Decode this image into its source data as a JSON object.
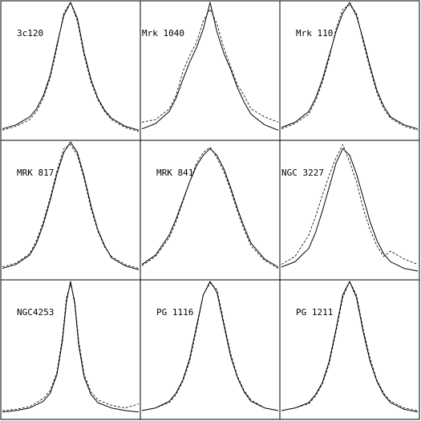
{
  "chart_data": [
    {
      "type": "line",
      "title": "3c120",
      "series": [
        {
          "style": "solid",
          "x": [
            -1,
            -0.8,
            -0.6,
            -0.5,
            -0.4,
            -0.3,
            -0.2,
            -0.1,
            0,
            0.1,
            0.2,
            0.3,
            0.4,
            0.5,
            0.6,
            0.8,
            1
          ],
          "y": [
            0.05,
            0.08,
            0.14,
            0.2,
            0.3,
            0.45,
            0.68,
            0.9,
            1.0,
            0.88,
            0.62,
            0.42,
            0.28,
            0.19,
            0.13,
            0.07,
            0.04
          ]
        },
        {
          "style": "dashed",
          "x": [
            -1,
            -0.8,
            -0.6,
            -0.5,
            -0.4,
            -0.3,
            -0.2,
            -0.1,
            0,
            0.1,
            0.2,
            0.3,
            0.4,
            0.5,
            0.6,
            0.8,
            1
          ],
          "y": [
            0.04,
            0.07,
            0.12,
            0.18,
            0.28,
            0.43,
            0.66,
            0.92,
            1.0,
            0.86,
            0.6,
            0.4,
            0.27,
            0.18,
            0.12,
            0.06,
            0.03
          ]
        }
      ]
    },
    {
      "type": "line",
      "title": "Mrk 1040",
      "series": [
        {
          "style": "solid",
          "x": [
            -1,
            -0.8,
            -0.6,
            -0.5,
            -0.4,
            -0.3,
            -0.2,
            -0.1,
            0,
            0.1,
            0.2,
            0.3,
            0.4,
            0.5,
            0.6,
            0.8,
            1
          ],
          "y": [
            0.05,
            0.09,
            0.18,
            0.28,
            0.42,
            0.55,
            0.66,
            0.8,
            1.0,
            0.78,
            0.62,
            0.5,
            0.36,
            0.25,
            0.16,
            0.08,
            0.04
          ]
        },
        {
          "style": "dashed",
          "x": [
            -1,
            -0.8,
            -0.6,
            -0.5,
            -0.4,
            -0.3,
            -0.2,
            -0.1,
            0,
            0.1,
            0.2,
            0.3,
            0.4,
            0.5,
            0.6,
            0.8,
            1
          ],
          "y": [
            0.1,
            0.12,
            0.2,
            0.3,
            0.48,
            0.6,
            0.7,
            0.86,
            0.95,
            0.84,
            0.66,
            0.52,
            0.38,
            0.3,
            0.2,
            0.14,
            0.1
          ]
        }
      ]
    },
    {
      "type": "line",
      "title": "Mrk 110",
      "series": [
        {
          "style": "solid",
          "x": [
            -1,
            -0.8,
            -0.6,
            -0.5,
            -0.4,
            -0.3,
            -0.2,
            -0.1,
            0,
            0.1,
            0.2,
            0.3,
            0.4,
            0.5,
            0.6,
            0.8,
            1
          ],
          "y": [
            0.06,
            0.1,
            0.18,
            0.28,
            0.42,
            0.6,
            0.78,
            0.92,
            1.0,
            0.9,
            0.72,
            0.52,
            0.34,
            0.22,
            0.14,
            0.08,
            0.05
          ]
        },
        {
          "style": "dashed",
          "x": [
            -1,
            -0.8,
            -0.6,
            -0.5,
            -0.4,
            -0.3,
            -0.2,
            -0.1,
            0,
            0.1,
            0.2,
            0.3,
            0.4,
            0.5,
            0.6,
            0.8,
            1
          ],
          "y": [
            0.05,
            0.09,
            0.16,
            0.26,
            0.4,
            0.58,
            0.8,
            0.95,
            0.98,
            0.92,
            0.7,
            0.5,
            0.32,
            0.2,
            0.13,
            0.07,
            0.04
          ]
        }
      ]
    },
    {
      "type": "line",
      "title": "MRK 817",
      "series": [
        {
          "style": "solid",
          "x": [
            -1,
            -0.8,
            -0.6,
            -0.5,
            -0.4,
            -0.3,
            -0.2,
            -0.1,
            0,
            0.1,
            0.2,
            0.3,
            0.4,
            0.5,
            0.6,
            0.8,
            1
          ],
          "y": [
            0.05,
            0.08,
            0.15,
            0.24,
            0.38,
            0.56,
            0.76,
            0.92,
            1.0,
            0.92,
            0.74,
            0.52,
            0.34,
            0.22,
            0.13,
            0.07,
            0.04
          ]
        },
        {
          "style": "dashed",
          "x": [
            -1,
            -0.8,
            -0.6,
            -0.5,
            -0.4,
            -0.3,
            -0.2,
            -0.1,
            0,
            0.1,
            0.2,
            0.3,
            0.4,
            0.5,
            0.6,
            0.8,
            1
          ],
          "y": [
            0.06,
            0.09,
            0.16,
            0.26,
            0.4,
            0.58,
            0.78,
            0.95,
            0.98,
            0.9,
            0.72,
            0.5,
            0.33,
            0.21,
            0.14,
            0.08,
            0.05
          ]
        }
      ]
    },
    {
      "type": "line",
      "title": "MRK 841",
      "series": [
        {
          "style": "solid",
          "x": [
            -1,
            -0.8,
            -0.6,
            -0.5,
            -0.4,
            -0.3,
            -0.2,
            -0.1,
            0,
            0.1,
            0.2,
            0.3,
            0.4,
            0.5,
            0.6,
            0.8,
            1
          ],
          "y": [
            0.08,
            0.15,
            0.3,
            0.42,
            0.56,
            0.7,
            0.82,
            0.9,
            0.95,
            0.9,
            0.8,
            0.66,
            0.5,
            0.36,
            0.24,
            0.12,
            0.06
          ]
        },
        {
          "style": "dashed",
          "x": [
            -1,
            -0.8,
            -0.6,
            -0.5,
            -0.4,
            -0.3,
            -0.2,
            -0.1,
            0,
            0.1,
            0.2,
            0.3,
            0.4,
            0.5,
            0.6,
            0.8,
            1
          ],
          "y": [
            0.07,
            0.14,
            0.28,
            0.4,
            0.55,
            0.7,
            0.84,
            0.92,
            0.96,
            0.88,
            0.78,
            0.64,
            0.48,
            0.34,
            0.22,
            0.11,
            0.05
          ]
        }
      ]
    },
    {
      "type": "line",
      "title": "NGC 3227",
      "series": [
        {
          "style": "solid",
          "x": [
            -1,
            -0.8,
            -0.6,
            -0.5,
            -0.4,
            -0.3,
            -0.2,
            -0.1,
            0,
            0.1,
            0.2,
            0.3,
            0.4,
            0.5,
            0.6,
            0.8,
            1
          ],
          "y": [
            0.06,
            0.1,
            0.2,
            0.32,
            0.48,
            0.66,
            0.84,
            0.95,
            0.9,
            0.76,
            0.58,
            0.4,
            0.26,
            0.16,
            0.1,
            0.05,
            0.03
          ]
        },
        {
          "style": "dashed",
          "x": [
            -1,
            -0.8,
            -0.6,
            -0.5,
            -0.4,
            -0.3,
            -0.2,
            -0.1,
            0,
            0.1,
            0.2,
            0.3,
            0.4,
            0.5,
            0.6,
            0.8,
            1
          ],
          "y": [
            0.08,
            0.14,
            0.3,
            0.44,
            0.6,
            0.75,
            0.88,
            0.98,
            0.85,
            0.7,
            0.5,
            0.34,
            0.22,
            0.14,
            0.18,
            0.12,
            0.08
          ]
        }
      ]
    },
    {
      "type": "line",
      "title": "NGC4253",
      "series": [
        {
          "style": "solid",
          "x": [
            -1,
            -0.8,
            -0.6,
            -0.4,
            -0.3,
            -0.2,
            -0.12,
            -0.06,
            0,
            0.06,
            0.12,
            0.2,
            0.3,
            0.4,
            0.6,
            0.8,
            1
          ],
          "y": [
            0.02,
            0.03,
            0.05,
            0.1,
            0.16,
            0.3,
            0.55,
            0.85,
            1.0,
            0.84,
            0.52,
            0.28,
            0.15,
            0.09,
            0.05,
            0.03,
            0.02
          ]
        },
        {
          "style": "dashed",
          "x": [
            -1,
            -0.8,
            -0.6,
            -0.4,
            -0.3,
            -0.2,
            -0.12,
            -0.06,
            0,
            0.06,
            0.12,
            0.2,
            0.3,
            0.4,
            0.6,
            0.8,
            1
          ],
          "y": [
            0.03,
            0.04,
            0.06,
            0.12,
            0.18,
            0.32,
            0.58,
            0.88,
            0.98,
            0.86,
            0.55,
            0.3,
            0.17,
            0.11,
            0.07,
            0.05,
            0.08
          ]
        }
      ]
    },
    {
      "type": "line",
      "title": "PG 1116",
      "series": [
        {
          "style": "solid",
          "x": [
            -1,
            -0.8,
            -0.6,
            -0.5,
            -0.4,
            -0.3,
            -0.2,
            -0.1,
            0,
            0.1,
            0.2,
            0.3,
            0.4,
            0.5,
            0.6,
            0.8,
            1
          ],
          "y": [
            0.03,
            0.05,
            0.1,
            0.16,
            0.26,
            0.42,
            0.66,
            0.9,
            1.0,
            0.92,
            0.68,
            0.44,
            0.28,
            0.17,
            0.1,
            0.05,
            0.03
          ]
        },
        {
          "style": "dashed",
          "x": [
            -1,
            -0.8,
            -0.6,
            -0.5,
            -0.4,
            -0.3,
            -0.2,
            -0.1,
            0,
            0.1,
            0.2,
            0.3,
            0.4,
            0.5,
            0.6,
            0.8,
            1
          ],
          "y": [
            0.03,
            0.05,
            0.09,
            0.15,
            0.25,
            0.4,
            0.64,
            0.9,
            0.99,
            0.94,
            0.7,
            0.46,
            0.29,
            0.18,
            0.11,
            0.05,
            0.03
          ]
        }
      ]
    },
    {
      "type": "line",
      "title": "PG 1211",
      "series": [
        {
          "style": "solid",
          "x": [
            -1,
            -0.8,
            -0.6,
            -0.5,
            -0.4,
            -0.3,
            -0.2,
            -0.1,
            0,
            0.1,
            0.2,
            0.3,
            0.4,
            0.5,
            0.6,
            0.8,
            1
          ],
          "y": [
            0.03,
            0.05,
            0.09,
            0.15,
            0.24,
            0.4,
            0.64,
            0.9,
            1.0,
            0.88,
            0.62,
            0.4,
            0.25,
            0.15,
            0.09,
            0.04,
            0.02
          ]
        },
        {
          "style": "dashed",
          "x": [
            -1,
            -0.8,
            -0.6,
            -0.5,
            -0.4,
            -0.3,
            -0.2,
            -0.1,
            0,
            0.1,
            0.2,
            0.3,
            0.4,
            0.5,
            0.6,
            0.8,
            1
          ],
          "y": [
            0.03,
            0.05,
            0.08,
            0.14,
            0.23,
            0.38,
            0.62,
            0.88,
            1.0,
            0.9,
            0.64,
            0.42,
            0.26,
            0.16,
            0.1,
            0.05,
            0.03
          ]
        }
      ]
    }
  ]
}
